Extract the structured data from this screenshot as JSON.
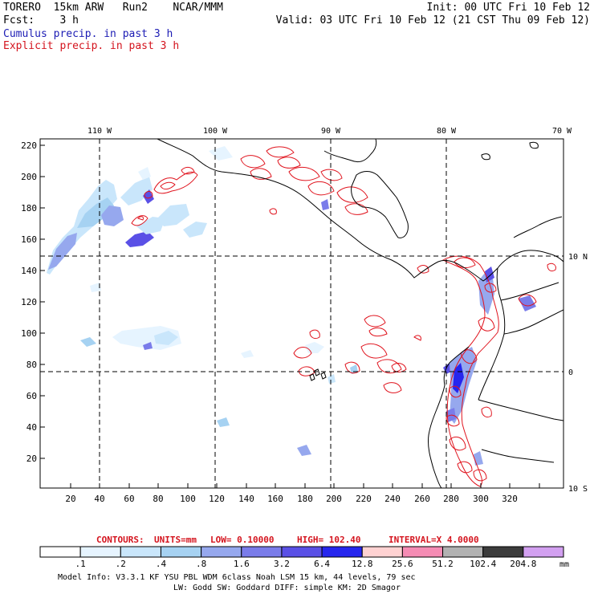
{
  "header": {
    "model_line": "TORERO  15km ARW   Run2    NCAR/MMM",
    "fcst_line": "Fcst:    3 h",
    "init": "Init: 00 UTC Fri 10 Feb 12",
    "valid": "Valid: 03 UTC Fri 10 Feb 12 (21 CST Thu 09 Feb 12)",
    "field_cumulus": "Cumulus precip. in past 3 h",
    "field_explicit": "Explicit precip. in past 3 h"
  },
  "map": {
    "top_lon_labels": [
      "110 W",
      "100 W",
      "90 W",
      "80 W",
      "70 W"
    ],
    "right_lat_labels": [
      "10 N",
      "0",
      "10 S"
    ],
    "y_ticks": [
      "220",
      "200",
      "180",
      "160",
      "140",
      "120",
      "100",
      "80",
      "60",
      "40",
      "20"
    ],
    "x_ticks": [
      "20",
      "40",
      "60",
      "80",
      "100",
      "120",
      "140",
      "160",
      "180",
      "200",
      "220",
      "240",
      "260",
      "280",
      "300",
      "320"
    ]
  },
  "contours": {
    "label": "CONTOURS:",
    "units": "UNITS=mm",
    "low": "LOW= 0.10000",
    "high": "HIGH= 102.40",
    "interval": "INTERVAL=X  4.0000"
  },
  "colorbar": {
    "labels": [
      ".1",
      ".2",
      ".4",
      ".8",
      "1.6",
      "3.2",
      "6.4",
      "12.8",
      "25.6",
      "51.2",
      "102.4",
      "204.8"
    ],
    "colors": [
      "#ffffff",
      "#e6f4ff",
      "#c9e6fb",
      "#a6d2f2",
      "#96a8ee",
      "#7a7cea",
      "#5a50e6",
      "#2626ee",
      "#ffd2d2",
      "#f58cb4",
      "#b2b2b2",
      "#3c3c3c",
      "#d2a0f0"
    ],
    "units": "mm"
  },
  "footer": {
    "line1": "Model Info: V3.3.1   KF     YSU PBL  WDM 6class  Noah LSM  15 km,   44 levels,   79 sec",
    "line2": "LW: Godd SW: Goddard DIFF: simple KM: 2D Smagor"
  }
}
